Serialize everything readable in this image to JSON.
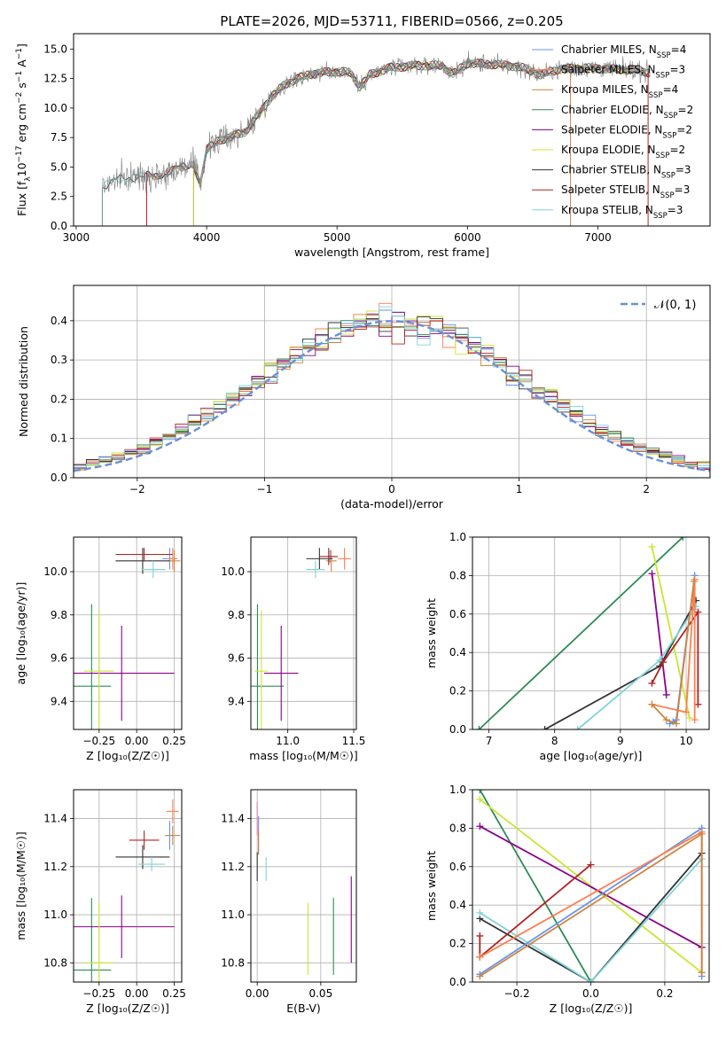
{
  "figure": {
    "title": "PLATE=2026, MJD=53711, FIBERID=0566, z=0.205"
  },
  "colors": {
    "Chabrier MILES": "#6495ed",
    "Salpeter MILES": "#ff7f50",
    "Kroupa MILES": "#cd853f",
    "Chabrier ELODIE": "#2e8b57",
    "Salpeter ELODIE": "#8b008b",
    "Kroupa ELODIE": "#c8e632",
    "Chabrier STELIB": "#333333",
    "Salpeter STELIB": "#b22222",
    "Kroupa STELIB": "#7fd3d9",
    "data": "#808080",
    "pink": "#e580a8",
    "normal": "#6a8fd4"
  },
  "legend_entries": [
    {
      "imf": "Chabrier MILES, N",
      "sub": "SSP",
      "n": "=4",
      "key": "Chabrier MILES"
    },
    {
      "imf": "Salpeter MILES, N",
      "sub": "SSP",
      "n": "=3",
      "key": "Salpeter MILES"
    },
    {
      "imf": "Kroupa MILES, N",
      "sub": "SSP",
      "n": "=4",
      "key": "Kroupa MILES"
    },
    {
      "imf": "Chabrier ELODIE, N",
      "sub": "SSP",
      "n": "=2",
      "key": "Chabrier ELODIE"
    },
    {
      "imf": "Salpeter ELODIE, N",
      "sub": "SSP",
      "n": "=2",
      "key": "Salpeter ELODIE"
    },
    {
      "imf": "Kroupa ELODIE, N",
      "sub": "SSP",
      "n": "=2",
      "key": "Kroupa ELODIE"
    },
    {
      "imf": "Chabrier STELIB, N",
      "sub": "SSP",
      "n": "=3",
      "key": "Chabrier STELIB"
    },
    {
      "imf": "Salpeter STELIB, N",
      "sub": "SSP",
      "n": "=3",
      "key": "Salpeter STELIB"
    },
    {
      "imf": "Kroupa STELIB, N",
      "sub": "SSP",
      "n": "=3",
      "key": "Kroupa STELIB"
    }
  ],
  "chart_data": [
    {
      "id": "spectrum",
      "type": "line",
      "xlabel": "wavelength [Angstrom, rest frame]",
      "ylabel_parts": [
        "Flux [f",
        "λ",
        "10",
        "−17",
        " erg cm",
        "−2",
        " s",
        "−1",
        " A",
        "−1",
        "]"
      ],
      "xlim": [
        2980,
        7860
      ],
      "ylim": [
        0,
        16.3
      ],
      "xticks": [
        3000,
        4000,
        5000,
        6000,
        7000
      ],
      "yticks": [
        0.0,
        2.5,
        5.0,
        7.5,
        10.0,
        12.5,
        15.0
      ],
      "ytick_labels": [
        "0.0",
        "2.5",
        "5.0",
        "7.5",
        "10.0",
        "12.5",
        "15.0"
      ],
      "grid": false,
      "legend": "top-right",
      "continuum": [
        [
          3200,
          3.3
        ],
        [
          3300,
          3.9
        ],
        [
          3400,
          4.1
        ],
        [
          3500,
          4.2
        ],
        [
          3600,
          4.3
        ],
        [
          3700,
          4.5
        ],
        [
          3800,
          5.0
        ],
        [
          3900,
          5.2
        ],
        [
          3950,
          3.6
        ],
        [
          4000,
          6.5
        ],
        [
          4100,
          7.3
        ],
        [
          4200,
          7.6
        ],
        [
          4300,
          8.0
        ],
        [
          4400,
          9.5
        ],
        [
          4500,
          11.0
        ],
        [
          4600,
          12.0
        ],
        [
          4700,
          12.5
        ],
        [
          4800,
          12.9
        ],
        [
          4900,
          13.0
        ],
        [
          5000,
          13.1
        ],
        [
          5100,
          13.0
        ],
        [
          5175,
          11.8
        ],
        [
          5250,
          12.8
        ],
        [
          5400,
          13.4
        ],
        [
          5600,
          13.6
        ],
        [
          5800,
          13.6
        ],
        [
          5890,
          12.9
        ],
        [
          6000,
          13.8
        ],
        [
          6200,
          13.7
        ],
        [
          6400,
          13.5
        ],
        [
          6563,
          12.8
        ],
        [
          6700,
          13.3
        ],
        [
          6900,
          13.4
        ],
        [
          7100,
          13.3
        ],
        [
          7300,
          13.2
        ],
        [
          7400,
          13.0
        ]
      ],
      "model_starts": [
        {
          "key": "Chabrier MILES",
          "x0": 3540
        },
        {
          "key": "Salpeter MILES",
          "x0": 3540
        },
        {
          "key": "Kroupa MILES",
          "x0": 3540
        },
        {
          "key": "Chabrier ELODIE",
          "x0": 3900
        },
        {
          "key": "Salpeter ELODIE",
          "x0": 3900
        },
        {
          "key": "Kroupa ELODIE",
          "x0": 3900
        },
        {
          "key": "Chabrier STELIB",
          "x0": 3200
        },
        {
          "key": "Salpeter STELIB",
          "x0": 3540
        },
        {
          "key": "Kroupa STELIB",
          "x0": 3200
        }
      ],
      "model_end_x": 6800
    },
    {
      "id": "residuals",
      "type": "bar",
      "xlabel": "(data-model)/error",
      "ylabel": "Normed distribution",
      "xlim": [
        -2.5,
        2.5
      ],
      "ylim": [
        0,
        0.49
      ],
      "xticks": [
        -2,
        -1,
        0,
        1,
        2
      ],
      "xtick_labels": [
        "−2",
        "−1",
        "0",
        "1",
        "2"
      ],
      "yticks": [
        0.0,
        0.1,
        0.2,
        0.3,
        0.4
      ],
      "ytick_labels": [
        "0.0",
        "0.1",
        "0.2",
        "0.3",
        "0.4"
      ],
      "grid": true,
      "legend": "top-right",
      "legend_label": "𝒩(0, 1)",
      "bin_width": 0.1
    },
    {
      "id": "age-vs-Z",
      "type": "scatter",
      "xlabel": "Z [log₁₀(Z/Z☉)]",
      "ylabel": "age  [log₁₀(age/yr)]",
      "xlim": [
        -0.42,
        0.3
      ],
      "ylim": [
        9.27,
        10.16
      ],
      "xticks": [
        -0.25,
        0.0,
        0.25
      ],
      "xtick_labels": [
        "−0.25",
        "0.00",
        "0.25"
      ],
      "yticks": [
        9.4,
        9.6,
        9.8,
        10.0
      ],
      "ytick_labels": [
        "9.4",
        "9.6",
        "9.8",
        "10.0"
      ],
      "grid": true,
      "points": [
        {
          "key": "Chabrier MILES",
          "x": 0.22,
          "y": 10.06,
          "xerr": 0.05,
          "yerr": 0.05
        },
        {
          "key": "Salpeter MILES",
          "x": 0.24,
          "y": 10.06,
          "xerr": 0.03,
          "yerr": 0.05
        },
        {
          "key": "Kroupa MILES",
          "x": 0.25,
          "y": 10.05,
          "xerr": 0.04,
          "yerr": 0.05
        },
        {
          "key": "Chabrier ELODIE",
          "x": -0.3,
          "y": 9.47,
          "xerr": 0.13,
          "yerr": 0.38
        },
        {
          "key": "Salpeter ELODIE",
          "x": -0.1,
          "y": 9.53,
          "xerr": 0.35,
          "yerr": 0.22
        },
        {
          "key": "Kroupa ELODIE",
          "x": -0.25,
          "y": 9.54,
          "xerr": 0.1,
          "yerr": 0.28
        },
        {
          "key": "Chabrier STELIB",
          "x": 0.04,
          "y": 10.05,
          "xerr": 0.18,
          "yerr": 0.06
        },
        {
          "key": "Salpeter STELIB",
          "x": 0.05,
          "y": 10.08,
          "xerr": 0.19,
          "yerr": 0.03
        },
        {
          "key": "Kroupa STELIB",
          "x": 0.11,
          "y": 10.01,
          "xerr": 0.08,
          "yerr": 0.04
        }
      ]
    },
    {
      "id": "age-vs-mass",
      "type": "scatter",
      "xlabel": "mass [log₁₀(M/M☉)]",
      "xlim": [
        10.72,
        11.52
      ],
      "ylim": [
        9.27,
        10.16
      ],
      "xticks": [
        11.0,
        11.5
      ],
      "xtick_labels": [
        "11.0",
        "11.5"
      ],
      "yticks": [
        9.4,
        9.6,
        9.8,
        10.0
      ],
      "ytick_labels": [
        "9.4",
        "9.6",
        "9.8",
        "10.0"
      ],
      "grid": true,
      "points": [
        {
          "key": "Chabrier MILES",
          "x": 11.32,
          "y": 10.07,
          "xerr": 0.04,
          "yerr": 0.03
        },
        {
          "key": "Salpeter MILES",
          "x": 11.43,
          "y": 10.06,
          "xerr": 0.05,
          "yerr": 0.05
        },
        {
          "key": "Kroupa MILES",
          "x": 11.33,
          "y": 10.05,
          "xerr": 0.04,
          "yerr": 0.05
        },
        {
          "key": "Chabrier ELODIE",
          "x": 10.77,
          "y": 9.47,
          "xerr": 0.2,
          "yerr": 0.38
        },
        {
          "key": "Salpeter ELODIE",
          "x": 10.95,
          "y": 9.53,
          "xerr": 0.13,
          "yerr": 0.22
        },
        {
          "key": "Kroupa ELODIE",
          "x": 10.8,
          "y": 9.54,
          "xerr": 0.05,
          "yerr": 0.28
        },
        {
          "key": "Chabrier STELIB",
          "x": 11.24,
          "y": 10.06,
          "xerr": 0.1,
          "yerr": 0.05
        },
        {
          "key": "Salpeter STELIB",
          "x": 11.31,
          "y": 10.07,
          "xerr": 0.07,
          "yerr": 0.04
        },
        {
          "key": "Kroupa STELIB",
          "x": 11.21,
          "y": 10.01,
          "xerr": 0.07,
          "yerr": 0.04
        }
      ]
    },
    {
      "id": "weight-vs-age",
      "type": "line",
      "xlabel": "age  [log₁₀(age/yr)]",
      "ylabel": "mass weight",
      "xlim": [
        6.75,
        10.35
      ],
      "ylim": [
        0,
        1.0
      ],
      "xticks": [
        7,
        8,
        9,
        10
      ],
      "xtick_labels": [
        "7",
        "8",
        "9",
        "10"
      ],
      "yticks": [
        0.0,
        0.2,
        0.4,
        0.6,
        0.8,
        1.0
      ],
      "ytick_labels": [
        "0.0",
        "0.2",
        "0.4",
        "0.6",
        "0.8",
        "1.0"
      ],
      "grid": true,
      "series": [
        {
          "key": "Chabrier ELODIE",
          "x": [
            6.85,
            9.95
          ],
          "y": [
            0.0,
            1.0
          ]
        },
        {
          "key": "Kroupa ELODIE",
          "x": [
            9.48,
            10.05
          ],
          "y": [
            0.95,
            0.06
          ]
        },
        {
          "key": "Salpeter ELODIE",
          "x": [
            9.48,
            9.7
          ],
          "y": [
            0.81,
            0.18
          ]
        },
        {
          "key": "Chabrier STELIB",
          "x": [
            7.85,
            9.6,
            10.15
          ],
          "y": [
            0.0,
            0.33,
            0.67
          ]
        },
        {
          "key": "Kroupa STELIB",
          "x": [
            8.35,
            9.6,
            10.15
          ],
          "y": [
            0.0,
            0.36,
            0.64
          ]
        },
        {
          "key": "Salpeter STELIB",
          "x": [
            9.48,
            9.65,
            10.18,
            10.18
          ],
          "y": [
            0.24,
            0.35,
            0.61,
            0.13
          ]
        },
        {
          "key": "Chabrier MILES",
          "x": [
            10.13,
            9.85,
            9.75,
            9.8
          ],
          "y": [
            0.8,
            0.05,
            0.03,
            0.04
          ]
        },
        {
          "key": "Salpeter MILES",
          "x": [
            9.48,
            10.0,
            10.13,
            10.13
          ],
          "y": [
            0.13,
            0.09,
            0.78,
            0.05
          ]
        },
        {
          "key": "Kroupa MILES",
          "x": [
            9.48,
            9.7,
            9.85,
            10.12
          ],
          "y": [
            0.13,
            0.05,
            0.03,
            0.77
          ]
        }
      ]
    },
    {
      "id": "mass-vs-Z",
      "type": "scatter",
      "xlabel": "Z [log₁₀(Z/Z☉)]",
      "ylabel": "mass [log₁₀(M/M☉)]",
      "xlim": [
        -0.42,
        0.3
      ],
      "ylim": [
        10.72,
        11.52
      ],
      "xticks": [
        -0.25,
        0.0,
        0.25
      ],
      "xtick_labels": [
        "−0.25",
        "0.00",
        "0.25"
      ],
      "yticks": [
        10.8,
        11.0,
        11.2,
        11.4
      ],
      "ytick_labels": [
        "10.8",
        "11.0",
        "11.2",
        "11.4"
      ],
      "grid": true,
      "points": [
        {
          "key": "Chabrier MILES",
          "x": 0.22,
          "y": 11.33,
          "xerr": 0.03,
          "yerr": 0.06
        },
        {
          "key": "Salpeter MILES",
          "x": 0.24,
          "y": 11.43,
          "xerr": 0.04,
          "yerr": 0.05
        },
        {
          "key": "Kroupa MILES",
          "x": 0.24,
          "y": 11.33,
          "xerr": 0.05,
          "yerr": 0.04
        },
        {
          "key": "Chabrier ELODIE",
          "x": -0.3,
          "y": 10.77,
          "xerr": 0.13,
          "yerr": 0.3
        },
        {
          "key": "Salpeter ELODIE",
          "x": -0.1,
          "y": 10.95,
          "xerr": 0.35,
          "yerr": 0.13
        },
        {
          "key": "Kroupa ELODIE",
          "x": -0.25,
          "y": 10.8,
          "xerr": 0.1,
          "yerr": 0.25
        },
        {
          "key": "Chabrier STELIB",
          "x": 0.04,
          "y": 11.24,
          "xerr": 0.18,
          "yerr": 0.05
        },
        {
          "key": "Salpeter STELIB",
          "x": 0.05,
          "y": 11.31,
          "xerr": 0.1,
          "yerr": 0.04
        },
        {
          "key": "Kroupa STELIB",
          "x": 0.1,
          "y": 11.21,
          "xerr": 0.09,
          "yerr": 0.03
        }
      ]
    },
    {
      "id": "mass-vs-ebv",
      "type": "scatter",
      "xlabel": "E(B-V)",
      "xlim": [
        -0.005,
        0.078
      ],
      "ylim": [
        10.72,
        11.52
      ],
      "xticks": [
        0.0,
        0.05
      ],
      "xtick_labels": [
        "0.00",
        "0.05"
      ],
      "yticks": [
        10.8,
        11.0,
        11.2,
        11.4
      ],
      "ytick_labels": [
        "10.8",
        "11.0",
        "11.2",
        "11.4"
      ],
      "grid": true,
      "points": [
        {
          "key": "Chabrier MILES",
          "x": 0.001,
          "y": 11.33,
          "xerr": 0.0,
          "yerr": 0.08
        },
        {
          "key": "pink",
          "x": 0.0,
          "y": 11.4,
          "xerr": 0.0,
          "yerr": 0.07
        },
        {
          "key": "Kroupa MILES",
          "x": 0.001,
          "y": 11.3,
          "xerr": 0.0,
          "yerr": 0.05
        },
        {
          "key": "Chabrier STELIB",
          "x": 0.0,
          "y": 11.2,
          "xerr": 0.0,
          "yerr": 0.06
        },
        {
          "key": "Kroupa STELIB",
          "x": 0.007,
          "y": 11.19,
          "xerr": 0.0,
          "yerr": 0.05
        },
        {
          "key": "Chabrier ELODIE",
          "x": 0.06,
          "y": 10.91,
          "xerr": 0.0,
          "yerr": 0.16
        },
        {
          "key": "Kroupa ELODIE",
          "x": 0.04,
          "y": 10.9,
          "xerr": 0.0,
          "yerr": 0.15
        },
        {
          "key": "Salpeter ELODIE",
          "x": 0.074,
          "y": 10.98,
          "xerr": 0.0,
          "yerr": 0.18
        }
      ]
    },
    {
      "id": "weight-vs-Z",
      "type": "line",
      "xlabel": "Z [log₁₀(Z/Z☉)]",
      "ylabel": "mass weight",
      "xlim": [
        -0.32,
        0.32
      ],
      "ylim": [
        0,
        1.0
      ],
      "xticks": [
        -0.2,
        0.0,
        0.2
      ],
      "xtick_labels": [
        "−0.2",
        "0.0",
        "0.2"
      ],
      "yticks": [
        0.0,
        0.2,
        0.4,
        0.6,
        0.8,
        1.0
      ],
      "ytick_labels": [
        "0.0",
        "0.2",
        "0.4",
        "0.6",
        "0.8",
        "1.0"
      ],
      "grid": true,
      "series": [
        {
          "key": "Chabrier ELODIE",
          "x": [
            -0.3,
            0.0
          ],
          "y": [
            1.0,
            0.0
          ]
        },
        {
          "key": "Kroupa ELODIE",
          "x": [
            -0.3,
            0.3
          ],
          "y": [
            0.95,
            0.05
          ]
        },
        {
          "key": "Salpeter ELODIE",
          "x": [
            -0.3,
            0.3
          ],
          "y": [
            0.81,
            0.18
          ]
        },
        {
          "key": "Chabrier STELIB",
          "x": [
            -0.3,
            0.0,
            0.3
          ],
          "y": [
            0.33,
            0.0,
            0.67
          ]
        },
        {
          "key": "Kroupa STELIB",
          "x": [
            -0.3,
            0.0,
            0.3
          ],
          "y": [
            0.36,
            0.0,
            0.64
          ]
        },
        {
          "key": "Salpeter STELIB",
          "x": [
            -0.3,
            -0.3,
            0.0
          ],
          "y": [
            0.24,
            0.13,
            0.61
          ]
        },
        {
          "key": "Chabrier MILES",
          "x": [
            -0.3,
            0.3,
            0.3
          ],
          "y": [
            0.04,
            0.8,
            0.03
          ]
        },
        {
          "key": "Salpeter MILES",
          "x": [
            -0.3,
            0.3,
            0.3
          ],
          "y": [
            0.13,
            0.78,
            0.05
          ]
        },
        {
          "key": "Kroupa MILES",
          "x": [
            -0.3,
            0.3,
            0.3
          ],
          "y": [
            0.03,
            0.77,
            0.05
          ]
        }
      ]
    }
  ]
}
